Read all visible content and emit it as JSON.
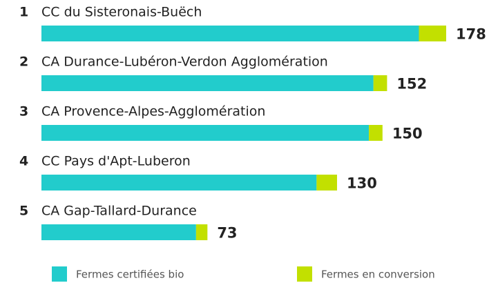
{
  "chart_data": {
    "type": "stacked-bar-horizontal",
    "ranks": [
      "1",
      "2",
      "3",
      "4",
      "5"
    ],
    "categories": [
      "CC du Sisteronais-Buëch",
      "CA Durance-Lubéron-Verdon Agglomération",
      "CA Provence-Alpes-Agglomération",
      "CC Pays d'Apt-Luberon",
      "CA Gap-Tallard-Durance"
    ],
    "series": [
      {
        "name": "Fermes certifiées bio",
        "color": "#22cccc",
        "values": [
          166,
          146,
          144,
          121,
          68
        ]
      },
      {
        "name": "Fermes en conversion",
        "color": "#c2e000",
        "values": [
          12,
          6,
          6,
          9,
          5
        ]
      }
    ],
    "totals": [
      178,
      152,
      150,
      130,
      73
    ]
  }
}
